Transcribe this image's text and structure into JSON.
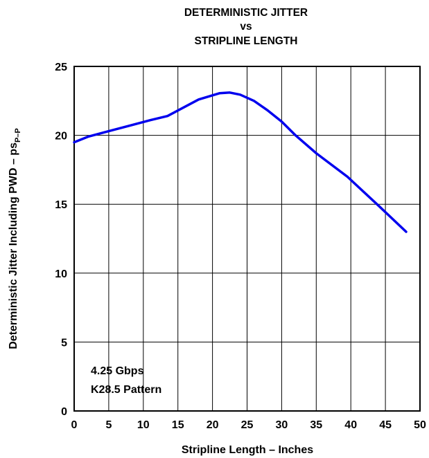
{
  "chart_data": {
    "type": "line",
    "title_lines": [
      "DETERMINISTIC JITTER",
      "vs",
      "STRIPLINE LENGTH"
    ],
    "xlabel": "Stripline Length – Inches",
    "ylabel_main": "Deterministic Jitter Including PWD – ps",
    "ylabel_sub": "P–P",
    "xlim": [
      0,
      50
    ],
    "ylim": [
      0,
      25
    ],
    "x_ticks": [
      0,
      5,
      10,
      15,
      20,
      25,
      30,
      35,
      40,
      45,
      50
    ],
    "y_ticks": [
      0,
      5,
      10,
      15,
      20,
      25
    ],
    "grid": true,
    "annotations": [
      "4.25 Gbps",
      "K28.5 Pattern"
    ],
    "series": [
      {
        "color": "#0000ee",
        "x": [
          0,
          2,
          5,
          8,
          11,
          13.5,
          15,
          18,
          21,
          22.5,
          24,
          26,
          28,
          30,
          32,
          35,
          39.5,
          44,
          48
        ],
        "y": [
          19.5,
          19.9,
          20.3,
          20.7,
          21.1,
          21.4,
          21.8,
          22.6,
          23.05,
          23.1,
          22.95,
          22.5,
          21.8,
          21.0,
          20.0,
          18.7,
          17.0,
          14.9,
          13.0
        ]
      }
    ]
  }
}
